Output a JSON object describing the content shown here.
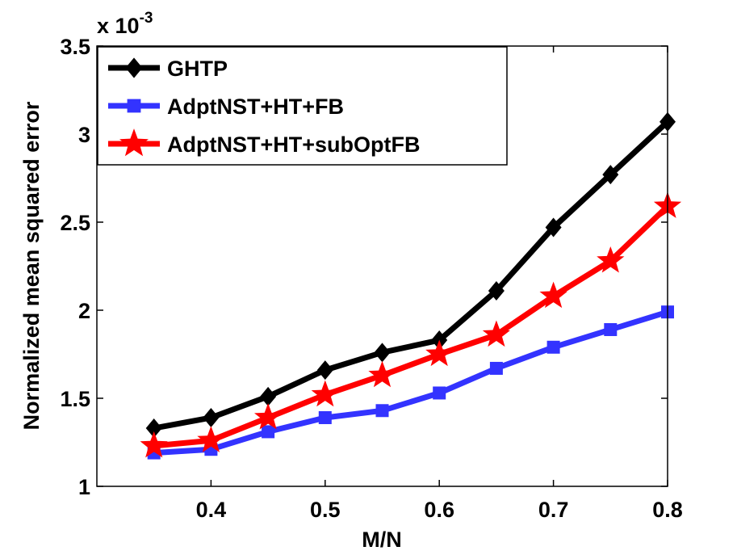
{
  "chart_data": {
    "type": "line",
    "xlabel": "M/N",
    "ylabel": "Normalized mean squared error",
    "y_multiplier": {
      "base": "x 10",
      "exponent": "-3"
    },
    "xlim": [
      0.3,
      0.8
    ],
    "ylim": [
      1,
      3.5
    ],
    "x_ticks": [
      0.4,
      0.5,
      0.6,
      0.7,
      0.8
    ],
    "x_tick_labels": [
      "0.4",
      "0.5",
      "0.6",
      "0.7",
      "0.8"
    ],
    "y_ticks": [
      1,
      1.5,
      2,
      2.5,
      3,
      3.5
    ],
    "y_tick_labels": [
      "1",
      "1.5",
      "2",
      "2.5",
      "3",
      "3.5"
    ],
    "x": [
      0.35,
      0.4,
      0.45,
      0.5,
      0.55,
      0.6,
      0.65,
      0.7,
      0.75,
      0.8
    ],
    "legend_position": "top-left",
    "series": [
      {
        "name": "GHTP",
        "color": "#000000",
        "marker": "diamond",
        "values": [
          1.33,
          1.39,
          1.51,
          1.66,
          1.76,
          1.83,
          2.11,
          2.47,
          2.77,
          3.07
        ]
      },
      {
        "name": "AdptNST+HT+FB",
        "color": "#3333ff",
        "marker": "square",
        "values": [
          1.19,
          1.21,
          1.31,
          1.39,
          1.43,
          1.53,
          1.67,
          1.79,
          1.89,
          1.99
        ]
      },
      {
        "name": "AdptNST+HT+subOptFB",
        "color": "#ff0000",
        "marker": "star",
        "values": [
          1.23,
          1.26,
          1.39,
          1.52,
          1.63,
          1.75,
          1.86,
          2.08,
          2.28,
          2.59
        ]
      }
    ]
  }
}
